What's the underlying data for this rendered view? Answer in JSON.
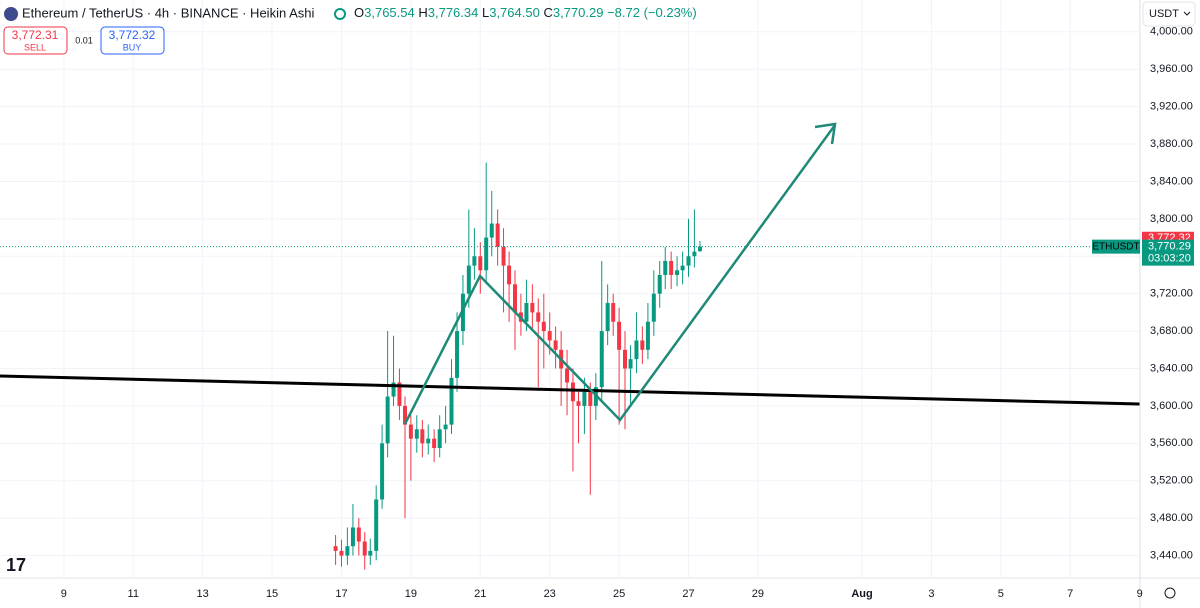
{
  "header": {
    "title": "Ethereum / TetherUS · 4h · BINANCE · Heikin Ashi",
    "o": "O",
    "o_value": "3,765.54",
    "h": "H",
    "h_value": "3,776.34",
    "l": "L",
    "l_value": "3,764.50",
    "c": "C",
    "c_value": "3,770.29",
    "change": "−8.72 (−0.23%)",
    "sell_price": "3,772.31",
    "sell": "SELL",
    "spread": "0.01",
    "buy_price": "3,772.32",
    "buy": "BUY",
    "currency": "USDT",
    "symbol": "ETHUSDT",
    "countdown": "03:03:20"
  },
  "chart_data": {
    "type": "candlestick",
    "up_color": "#089981",
    "down_color": "#f23645",
    "x": [
      16.83,
      17.0,
      17.17,
      17.33,
      17.5,
      17.67,
      17.83,
      18.0,
      18.17,
      18.33,
      18.5,
      18.67,
      18.83,
      19.0,
      19.17,
      19.33,
      19.5,
      19.67,
      19.83,
      20.0,
      20.17,
      20.33,
      20.5,
      20.67,
      20.83,
      21.0,
      21.17,
      21.33,
      21.5,
      21.67,
      21.83,
      22.0,
      22.17,
      22.33,
      22.5,
      22.67,
      22.83,
      23.0,
      23.17,
      23.33,
      23.5,
      23.67,
      23.83,
      24.0,
      24.17,
      24.33,
      24.5,
      24.67,
      24.83,
      25.0,
      25.17,
      25.33,
      25.5,
      25.67,
      25.83,
      26.0,
      26.17,
      26.33,
      26.5,
      26.67,
      26.83,
      27.0,
      27.17,
      27.33
    ],
    "open": [
      3450,
      3445,
      3440,
      3450,
      3470,
      3455,
      3440,
      3445,
      3500,
      3560,
      3610,
      3625,
      3600,
      3580,
      3565,
      3575,
      3560,
      3565,
      3555,
      3575,
      3580,
      3630,
      3680,
      3720,
      3750,
      3760,
      3745,
      3780,
      3795,
      3770,
      3750,
      3730,
      3700,
      3690,
      3710,
      3700,
      3690,
      3680,
      3670,
      3660,
      3640,
      3625,
      3605,
      3600,
      3615,
      3600,
      3620,
      3680,
      3710,
      3690,
      3660,
      3640,
      3650,
      3670,
      3660,
      3690,
      3720,
      3740,
      3755,
      3740,
      3745,
      3750,
      3760,
      3765.54
    ],
    "high": [
      3462,
      3457,
      3470,
      3495,
      3480,
      3465,
      3458,
      3515,
      3580,
      3680,
      3675,
      3640,
      3610,
      3590,
      3590,
      3585,
      3580,
      3575,
      3590,
      3600,
      3650,
      3700,
      3740,
      3810,
      3790,
      3775,
      3860,
      3830,
      3810,
      3790,
      3765,
      3745,
      3720,
      3735,
      3730,
      3715,
      3720,
      3700,
      3685,
      3680,
      3660,
      3640,
      3615,
      3630,
      3625,
      3635,
      3755,
      3730,
      3720,
      3705,
      3680,
      3665,
      3700,
      3685,
      3710,
      3745,
      3755,
      3770,
      3765,
      3760,
      3765,
      3800,
      3810,
      3776.34
    ],
    "low": [
      3430,
      3428,
      3430,
      3440,
      3440,
      3425,
      3430,
      3435,
      3490,
      3545,
      3600,
      3585,
      3480,
      3520,
      3550,
      3545,
      3548,
      3540,
      3545,
      3560,
      3570,
      3615,
      3665,
      3705,
      3735,
      3720,
      3730,
      3760,
      3750,
      3700,
      3690,
      3660,
      3675,
      3680,
      3680,
      3620,
      3640,
      3655,
      3640,
      3600,
      3590,
      3530,
      3560,
      3570,
      3505,
      3585,
      3605,
      3665,
      3675,
      3580,
      3575,
      3600,
      3635,
      3645,
      3650,
      3675,
      3705,
      3725,
      3725,
      3728,
      3730,
      3738,
      3748,
      3764.5
    ],
    "close": [
      3445,
      3440,
      3450,
      3470,
      3455,
      3440,
      3445,
      3500,
      3560,
      3610,
      3625,
      3600,
      3580,
      3565,
      3575,
      3560,
      3565,
      3555,
      3575,
      3580,
      3630,
      3680,
      3720,
      3750,
      3760,
      3745,
      3780,
      3795,
      3770,
      3750,
      3730,
      3700,
      3690,
      3710,
      3700,
      3690,
      3680,
      3670,
      3660,
      3640,
      3625,
      3605,
      3600,
      3615,
      3600,
      3620,
      3680,
      3710,
      3690,
      3660,
      3640,
      3650,
      3670,
      3660,
      3690,
      3720,
      3740,
      3755,
      3740,
      3745,
      3750,
      3760,
      3765,
      3770.29
    ],
    "ylim": [
      3416,
      4034
    ],
    "yticks": [
      {
        "value": 3440,
        "label": "3,440.00"
      },
      {
        "value": 3480,
        "label": "3,480.00"
      },
      {
        "value": 3520,
        "label": "3,520.00"
      },
      {
        "value": 3560,
        "label": "3,560.00"
      },
      {
        "value": 3600,
        "label": "3,600.00"
      },
      {
        "value": 3640,
        "label": "3,640.00"
      },
      {
        "value": 3680,
        "label": "3,680.00"
      },
      {
        "value": 3720,
        "label": "3,720.00"
      },
      {
        "value": 3760,
        "label": "3,760.00"
      },
      {
        "value": 3800,
        "label": "3,800.00"
      },
      {
        "value": 3840,
        "label": "3,840.00"
      },
      {
        "value": 3880,
        "label": "3,880.00"
      },
      {
        "value": 3920,
        "label": "3,920.00"
      },
      {
        "value": 3960,
        "label": "3,960.00"
      },
      {
        "value": 4000,
        "label": "4,000.00"
      }
    ],
    "xlim": [
      7.16,
      40.01
    ],
    "xticks": [
      9,
      11,
      13,
      15,
      17,
      19,
      21,
      23,
      25,
      27,
      29,
      {
        "value": 32,
        "label": "Aug"
      },
      {
        "value": 34,
        "label": "3"
      },
      {
        "value": 36,
        "label": "5"
      },
      {
        "value": 38,
        "label": "7"
      },
      {
        "value": 40,
        "label": "9"
      }
    ],
    "grid": true,
    "last_price": {
      "value": 3770.29,
      "label": "3,770.29"
    },
    "ask_price": {
      "value": 3772.32,
      "label": "3,772.32"
    }
  }
}
